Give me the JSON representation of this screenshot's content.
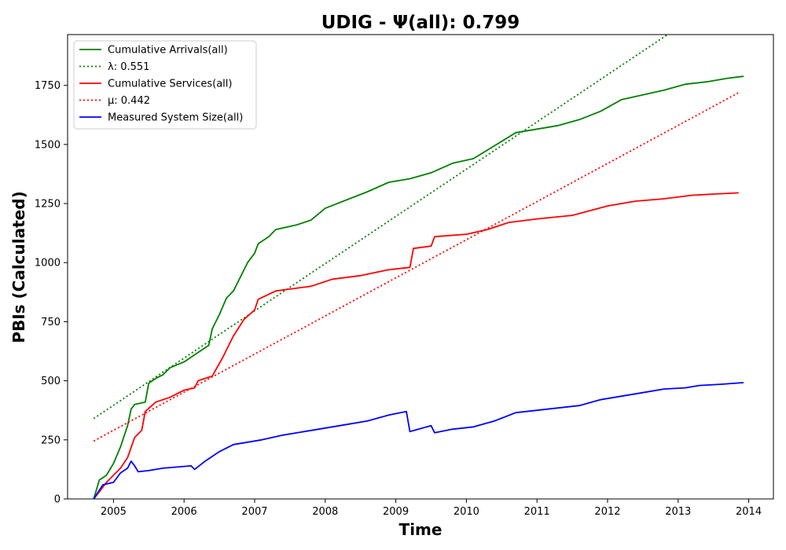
{
  "chart_data": {
    "type": "line",
    "title": "UDIG -  Ψ(all): 0.799",
    "xlabel": "Time",
    "ylabel": "PBIs (Calculated)",
    "xlim": [
      2004.35,
      2014.35
    ],
    "ylim": [
      0,
      1965
    ],
    "x_ticks": [
      2005,
      2006,
      2007,
      2008,
      2009,
      2010,
      2011,
      2012,
      2013,
      2014
    ],
    "x_tick_labels": [
      "2005",
      "2006",
      "2007",
      "2008",
      "2009",
      "2010",
      "2011",
      "2012",
      "2013",
      "2014"
    ],
    "y_ticks": [
      0,
      250,
      500,
      750,
      1000,
      1250,
      1500,
      1750
    ],
    "y_tick_labels": [
      "0",
      "250",
      "500",
      "750",
      "1000",
      "1250",
      "1500",
      "1750"
    ],
    "grid": false,
    "legend_position": "top-left",
    "series": [
      {
        "name": "Cumulative Arrivals(all)",
        "color": "#008000",
        "style": "solid",
        "x": [
          2004.72,
          2004.8,
          2004.9,
          2005.0,
          2005.1,
          2005.2,
          2005.25,
          2005.3,
          2005.45,
          2005.5,
          2005.6,
          2005.7,
          2005.8,
          2006.0,
          2006.2,
          2006.35,
          2006.4,
          2006.5,
          2006.6,
          2006.7,
          2006.8,
          2006.9,
          2007.0,
          2007.05,
          2007.2,
          2007.3,
          2007.6,
          2007.8,
          2008.0,
          2008.3,
          2008.6,
          2008.9,
          2009.2,
          2009.5,
          2009.8,
          2010.1,
          2010.4,
          2010.7,
          2011.0,
          2011.3,
          2011.6,
          2011.9,
          2012.2,
          2012.5,
          2012.8,
          2013.1,
          2013.4,
          2013.7,
          2013.92
        ],
        "values": [
          0,
          80,
          100,
          150,
          220,
          310,
          380,
          400,
          410,
          490,
          510,
          525,
          555,
          580,
          620,
          650,
          720,
          780,
          850,
          880,
          940,
          1000,
          1040,
          1080,
          1110,
          1140,
          1160,
          1180,
          1230,
          1265,
          1300,
          1340,
          1355,
          1380,
          1420,
          1440,
          1495,
          1550,
          1565,
          1580,
          1605,
          1640,
          1690,
          1710,
          1730,
          1755,
          1765,
          1780,
          1788
        ]
      },
      {
        "name": "λ: 0.551",
        "color": "#008000",
        "style": "dotted",
        "x": [
          2004.72,
          2012.85
        ],
        "values": [
          340,
          1965
        ]
      },
      {
        "name": "Cumulative Services(all)",
        "color": "#ff0000",
        "style": "solid",
        "x": [
          2004.72,
          2004.8,
          2004.9,
          2005.0,
          2005.1,
          2005.2,
          2005.3,
          2005.4,
          2005.45,
          2005.6,
          2005.8,
          2006.0,
          2006.15,
          2006.2,
          2006.4,
          2006.55,
          2006.7,
          2006.85,
          2007.0,
          2007.05,
          2007.3,
          2007.8,
          2008.1,
          2008.5,
          2008.9,
          2009.2,
          2009.25,
          2009.5,
          2009.55,
          2010.0,
          2010.3,
          2010.6,
          2011.0,
          2011.5,
          2012.0,
          2012.4,
          2012.8,
          2013.2,
          2013.5,
          2013.85
        ],
        "values": [
          0,
          30,
          70,
          100,
          130,
          175,
          260,
          290,
          370,
          410,
          430,
          460,
          470,
          500,
          520,
          600,
          690,
          760,
          800,
          845,
          880,
          900,
          930,
          945,
          970,
          980,
          1060,
          1070,
          1110,
          1120,
          1140,
          1170,
          1185,
          1200,
          1240,
          1260,
          1270,
          1285,
          1290,
          1295
        ]
      },
      {
        "name": "μ: 0.442",
        "color": "#ff0000",
        "style": "dotted",
        "x": [
          2004.72,
          2013.85
        ],
        "values": [
          245,
          1718
        ]
      },
      {
        "name": "Measured System Size(all)",
        "color": "#0000ff",
        "style": "solid",
        "x": [
          2004.72,
          2004.85,
          2005.0,
          2005.1,
          2005.2,
          2005.25,
          2005.3,
          2005.35,
          2005.5,
          2005.7,
          2005.9,
          2006.1,
          2006.15,
          2006.3,
          2006.5,
          2006.7,
          2006.9,
          2007.1,
          2007.4,
          2007.7,
          2008.0,
          2008.3,
          2008.6,
          2008.9,
          2009.15,
          2009.2,
          2009.5,
          2009.55,
          2009.8,
          2010.1,
          2010.4,
          2010.7,
          2011.0,
          2011.3,
          2011.6,
          2011.9,
          2012.2,
          2012.5,
          2012.8,
          2013.1,
          2013.3,
          2013.6,
          2013.92
        ],
        "values": [
          0,
          60,
          70,
          110,
          130,
          160,
          140,
          115,
          120,
          130,
          135,
          140,
          125,
          160,
          200,
          230,
          240,
          250,
          270,
          285,
          300,
          315,
          330,
          355,
          370,
          285,
          310,
          280,
          295,
          305,
          330,
          365,
          375,
          385,
          395,
          420,
          435,
          450,
          465,
          470,
          480,
          485,
          492
        ]
      }
    ]
  }
}
